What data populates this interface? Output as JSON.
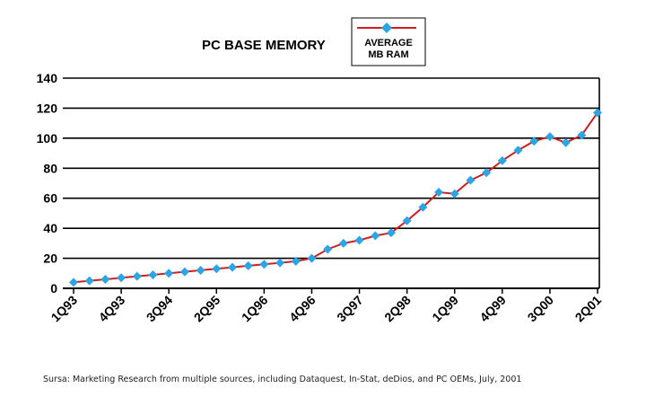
{
  "chart_data": {
    "type": "line",
    "title": "PC BASE MEMORY",
    "legend": {
      "placement": "top-right",
      "lines": [
        "AVERAGE",
        "MB RAM"
      ]
    },
    "ylim": [
      0,
      140
    ],
    "yticks": [
      0,
      20,
      40,
      60,
      80,
      100,
      120,
      140
    ],
    "grid": true,
    "x_tick_labels": [
      "1Q93",
      "4Q93",
      "3Q94",
      "2Q95",
      "1Q96",
      "4Q96",
      "3Q97",
      "2Q98",
      "1Q99",
      "4Q99",
      "3Q00",
      "2Q01"
    ],
    "categories": [
      "1Q93",
      "2Q93",
      "3Q93",
      "4Q93",
      "1Q94",
      "2Q94",
      "3Q94",
      "4Q94",
      "1Q95",
      "2Q95",
      "3Q95",
      "4Q95",
      "1Q96",
      "2Q96",
      "3Q96",
      "4Q96",
      "1Q97",
      "2Q97",
      "3Q97",
      "4Q97",
      "1Q98",
      "2Q98",
      "3Q98",
      "4Q98",
      "1Q99",
      "2Q99",
      "3Q99",
      "4Q99",
      "1Q00",
      "2Q00",
      "3Q00",
      "4Q00",
      "1Q01",
      "2Q01"
    ],
    "series": [
      {
        "name": "AVERAGE MB RAM",
        "color": "#cc1f1f",
        "marker_color": "#2aa5e6",
        "values": [
          4,
          5,
          6,
          7,
          8,
          9,
          10,
          11,
          12,
          13,
          14,
          15,
          16,
          17,
          18,
          20,
          26,
          30,
          32,
          35,
          37,
          45,
          54,
          64,
          63,
          72,
          77,
          85,
          92,
          98,
          101,
          97,
          102,
          117
        ]
      }
    ]
  },
  "source_text": "Sursa: Marketing Research from multiple sources, including Dataquest, In-Stat, deDios, and PC OEMs, July, 2001"
}
